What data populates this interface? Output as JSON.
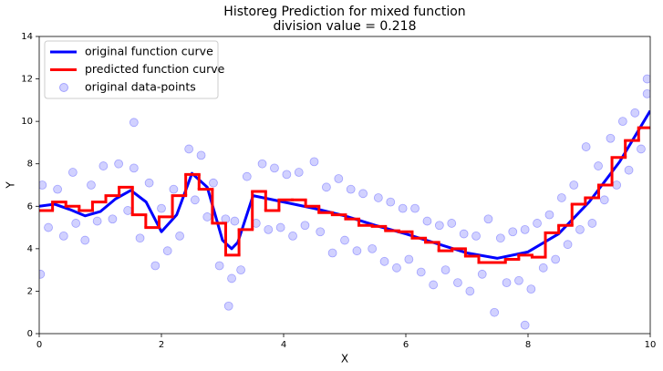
{
  "chart_data": {
    "type": "line",
    "title": "Historeg Prediction for mixed function",
    "subtitle": "division value = 0.218",
    "x_label": "X",
    "y_label": "Y",
    "xlim": [
      0,
      10
    ],
    "ylim": [
      0,
      14
    ],
    "xticks": [
      0,
      2,
      4,
      6,
      8,
      10
    ],
    "yticks": [
      0,
      2,
      4,
      6,
      8,
      10,
      12,
      14
    ],
    "legend": "upper left",
    "series": [
      {
        "name": "original function curve",
        "type": "line",
        "color": "#0000ff",
        "x": [
          0,
          0.25,
          0.5,
          0.75,
          1.0,
          1.25,
          1.5,
          1.75,
          2.0,
          2.25,
          2.5,
          2.75,
          3.0,
          3.15,
          3.25,
          3.5,
          3.75,
          4.0,
          4.5,
          5.0,
          5.5,
          6.0,
          6.5,
          7.0,
          7.5,
          8.0,
          8.5,
          9.0,
          9.5,
          10.0
        ],
        "values": [
          6.0,
          6.1,
          5.85,
          5.55,
          5.75,
          6.35,
          6.75,
          6.2,
          4.8,
          5.6,
          7.55,
          6.9,
          4.4,
          4.0,
          4.3,
          6.5,
          6.35,
          6.2,
          5.9,
          5.55,
          5.1,
          4.7,
          4.25,
          3.8,
          3.55,
          3.85,
          4.7,
          6.2,
          8.1,
          10.5
        ]
      },
      {
        "name": "predicted function curve",
        "type": "step",
        "color": "#ff0000",
        "bins": [
          0,
          0.218,
          0.436,
          0.654,
          0.872,
          1.09,
          1.308,
          1.526,
          1.744,
          1.962,
          2.18,
          2.398,
          2.616,
          2.834,
          3.052,
          3.27,
          3.488,
          3.706,
          3.924,
          4.142,
          4.36,
          4.578,
          4.796,
          5.014,
          5.232,
          5.45,
          5.668,
          5.886,
          6.104,
          6.322,
          6.54,
          6.758,
          6.976,
          7.194,
          7.412,
          7.63,
          7.848,
          8.066,
          8.284,
          8.502,
          8.72,
          8.938,
          9.156,
          9.374,
          9.592,
          9.81,
          10
        ],
        "values": [
          5.8,
          6.2,
          6.0,
          5.8,
          6.2,
          6.5,
          6.9,
          5.6,
          5.0,
          5.5,
          6.5,
          7.5,
          6.8,
          5.2,
          3.7,
          4.9,
          6.7,
          5.8,
          6.3,
          6.3,
          6.0,
          5.7,
          5.6,
          5.4,
          5.1,
          5.05,
          4.85,
          4.8,
          4.5,
          4.3,
          3.9,
          4.0,
          3.65,
          3.35,
          3.35,
          3.5,
          3.7,
          3.6,
          4.75,
          5.1,
          6.1,
          6.4,
          7.0,
          8.3,
          9.1,
          9.7
        ]
      },
      {
        "name": "original data-points",
        "type": "scatter",
        "color": "#0000ff",
        "x": [
          0.05,
          0.15,
          0.3,
          0.4,
          0.55,
          0.6,
          0.75,
          0.85,
          0.95,
          1.05,
          1.2,
          1.3,
          1.45,
          1.55,
          1.65,
          1.8,
          1.9,
          2.0,
          2.1,
          2.2,
          2.3,
          2.45,
          2.55,
          2.65,
          2.75,
          2.85,
          2.95,
          3.05,
          3.15,
          3.2,
          3.3,
          3.4,
          3.55,
          3.65,
          3.75,
          3.85,
          3.95,
          4.05,
          4.15,
          4.25,
          4.35,
          4.5,
          4.6,
          4.7,
          4.8,
          4.9,
          5.0,
          5.1,
          5.2,
          5.3,
          5.45,
          5.55,
          5.65,
          5.75,
          5.85,
          5.95,
          6.05,
          6.15,
          6.25,
          6.35,
          6.45,
          6.55,
          6.65,
          6.75,
          6.85,
          6.95,
          7.05,
          7.15,
          7.25,
          7.35,
          7.45,
          7.55,
          7.65,
          7.75,
          7.85,
          7.95,
          8.05,
          8.15,
          8.25,
          8.35,
          8.45,
          8.55,
          8.65,
          8.75,
          8.85,
          8.95,
          9.05,
          9.15,
          9.25,
          9.35,
          9.45,
          9.55,
          9.65,
          9.75,
          9.85,
          9.95,
          1.55,
          9.95,
          7.95,
          0.02,
          3.1
        ],
        "values": [
          7.0,
          5.0,
          6.8,
          4.6,
          7.6,
          5.2,
          4.4,
          7.0,
          5.3,
          7.9,
          5.4,
          8.0,
          5.8,
          7.8,
          4.5,
          7.1,
          3.2,
          5.9,
          3.9,
          6.8,
          4.6,
          8.7,
          6.3,
          8.4,
          5.5,
          7.1,
          3.2,
          5.4,
          2.6,
          5.3,
          3.0,
          7.4,
          5.2,
          8.0,
          4.9,
          7.8,
          5.0,
          7.5,
          4.6,
          7.6,
          5.1,
          8.1,
          4.8,
          6.9,
          3.8,
          7.3,
          4.4,
          6.8,
          3.9,
          6.6,
          4.0,
          6.4,
          3.4,
          6.2,
          3.1,
          5.9,
          3.5,
          5.9,
          2.9,
          5.3,
          2.3,
          5.1,
          3.0,
          5.2,
          2.4,
          4.7,
          2.0,
          4.6,
          2.8,
          5.4,
          1.0,
          4.5,
          2.4,
          4.8,
          2.5,
          4.9,
          2.1,
          5.2,
          3.1,
          5.6,
          3.5,
          6.4,
          4.2,
          7.0,
          4.9,
          8.8,
          5.2,
          7.9,
          6.3,
          9.2,
          7.0,
          10.0,
          7.7,
          10.4,
          8.7,
          11.3,
          9.95,
          12.0,
          0.4,
          2.8,
          1.3
        ]
      }
    ]
  }
}
